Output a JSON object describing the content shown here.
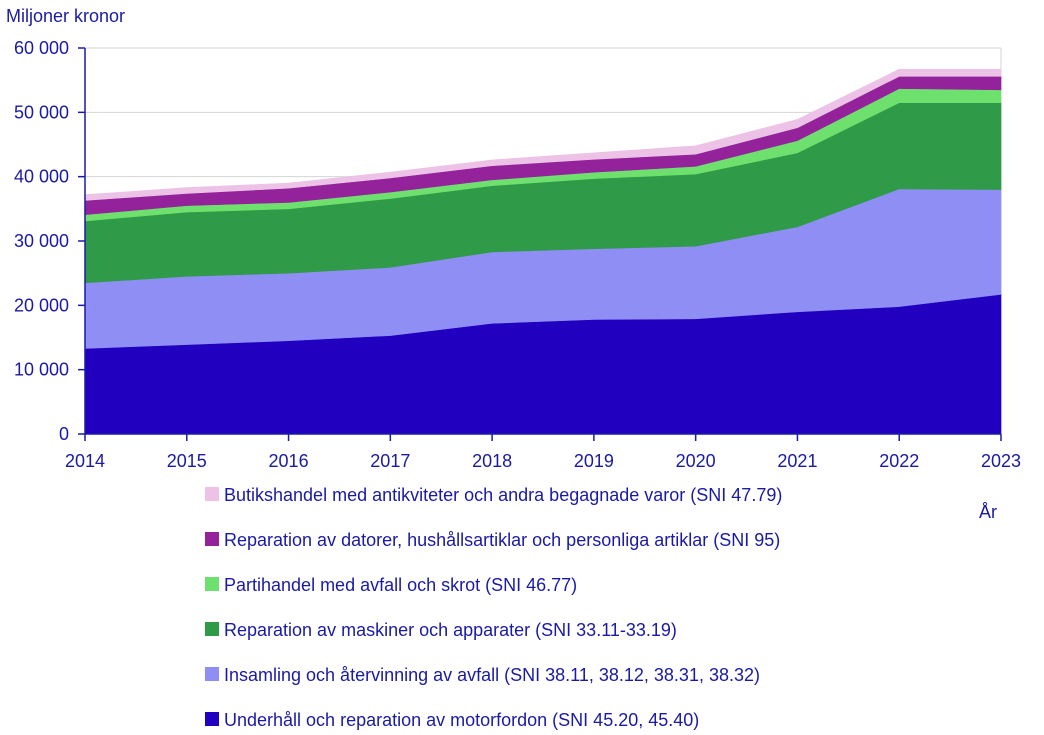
{
  "chart_data": {
    "type": "area",
    "stacked": true,
    "ylabel": "Miljoner kronor",
    "xlabel": "År",
    "ylim": [
      0,
      60000
    ],
    "yticks": [
      0,
      10000,
      20000,
      30000,
      40000,
      50000,
      60000
    ],
    "ytick_labels": [
      "0",
      "10 000",
      "20 000",
      "30 000",
      "40 000",
      "50 000",
      "60 000"
    ],
    "categories": [
      "2014",
      "2015",
      "2016",
      "2017",
      "2018",
      "2019",
      "2020",
      "2021",
      "2022",
      "2023"
    ],
    "legend_position": "bottom",
    "series": [
      {
        "name": "Underhåll och reparation av motorfordon (SNI 45.20, 45.40)",
        "color": "#2200c0",
        "values": [
          13300,
          13900,
          14500,
          15300,
          17200,
          17800,
          17900,
          19000,
          19800,
          21700
        ]
      },
      {
        "name": "Insamling och återvinning av avfall (SNI 38.11, 38.12, 38.31, 38.32)",
        "color": "#8e8ef5",
        "values": [
          10200,
          10600,
          10500,
          10600,
          11100,
          11000,
          11300,
          13200,
          18300,
          16300
        ]
      },
      {
        "name": "Reparation av maskiner och apparater (SNI 33.11-33.19)",
        "color": "#2f9a48",
        "values": [
          9600,
          10000,
          10000,
          10700,
          10300,
          10900,
          11200,
          11500,
          13400,
          13500
        ]
      },
      {
        "name": "Partihandel med avfall och skrot (SNI 46.77)",
        "color": "#6ee06e",
        "values": [
          1000,
          1000,
          1000,
          1000,
          900,
          1000,
          1200,
          1900,
          2200,
          2000
        ]
      },
      {
        "name": "Reparation av datorer, hushållsartiklar och personliga artiklar (SNI 95)",
        "color": "#93229b",
        "values": [
          2200,
          1900,
          2200,
          2200,
          2200,
          2000,
          1900,
          2000,
          1900,
          2100
        ]
      },
      {
        "name": "Butikshandel med antikviteter och andra begagnade varor (SNI 47.79)",
        "color": "#ecc2e6",
        "values": [
          900,
          900,
          800,
          900,
          900,
          1000,
          1300,
          1300,
          1100,
          1100
        ]
      }
    ]
  }
}
